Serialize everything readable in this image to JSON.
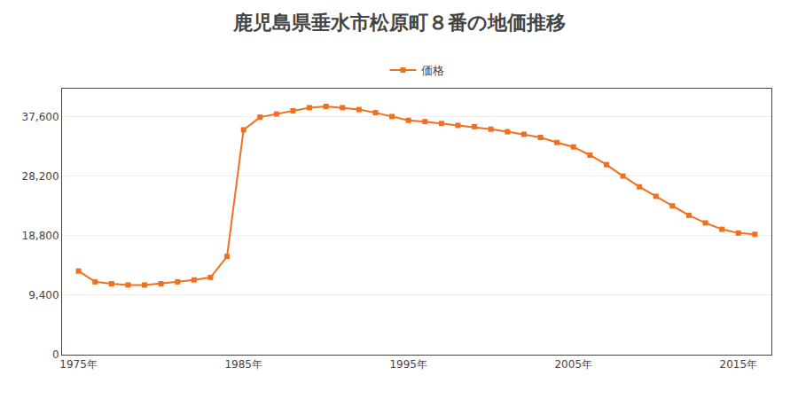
{
  "chart_data": {
    "type": "line",
    "title": "鹿児島県垂水市松原町８番の地価推移",
    "x": [
      1975,
      1976,
      1977,
      1978,
      1979,
      1980,
      1981,
      1982,
      1983,
      1984,
      1985,
      1986,
      1987,
      1988,
      1989,
      1990,
      1991,
      1992,
      1993,
      1994,
      1995,
      1996,
      1997,
      1998,
      1999,
      2000,
      2001,
      2002,
      2003,
      2004,
      2005,
      2006,
      2007,
      2008,
      2009,
      2010,
      2011,
      2012,
      2013,
      2014,
      2015,
      2016
    ],
    "series": [
      {
        "name": "価格",
        "color": "#f07020",
        "marker": "square",
        "values": [
          13200,
          11500,
          11200,
          11000,
          11000,
          11200,
          11500,
          11800,
          12200,
          15500,
          35500,
          37500,
          38000,
          38500,
          39000,
          39200,
          39000,
          38700,
          38200,
          37600,
          37000,
          36800,
          36500,
          36200,
          36000,
          35600,
          35200,
          34800,
          34300,
          33500,
          32800,
          31500,
          30000,
          28200,
          26500,
          25000,
          23500,
          22000,
          20800,
          19800,
          19200,
          19000
        ]
      }
    ],
    "xlim": [
      1974,
      2017
    ],
    "xticks": [
      {
        "value": 1975,
        "label": "1975年"
      },
      {
        "value": 1985,
        "label": "1985年"
      },
      {
        "value": 1995,
        "label": "1995年"
      },
      {
        "value": 2005,
        "label": "2005年"
      },
      {
        "value": 2015,
        "label": "2015年"
      }
    ],
    "ylim": [
      0,
      42000
    ],
    "yticks": [
      0,
      {
        "value": 9400,
        "label": "9,400"
      },
      {
        "value": 18800,
        "label": "18,800"
      },
      {
        "value": 28200,
        "label": "28,200"
      },
      {
        "value": 37600,
        "label": "37,600"
      }
    ],
    "grid": "y",
    "legend": "top"
  }
}
